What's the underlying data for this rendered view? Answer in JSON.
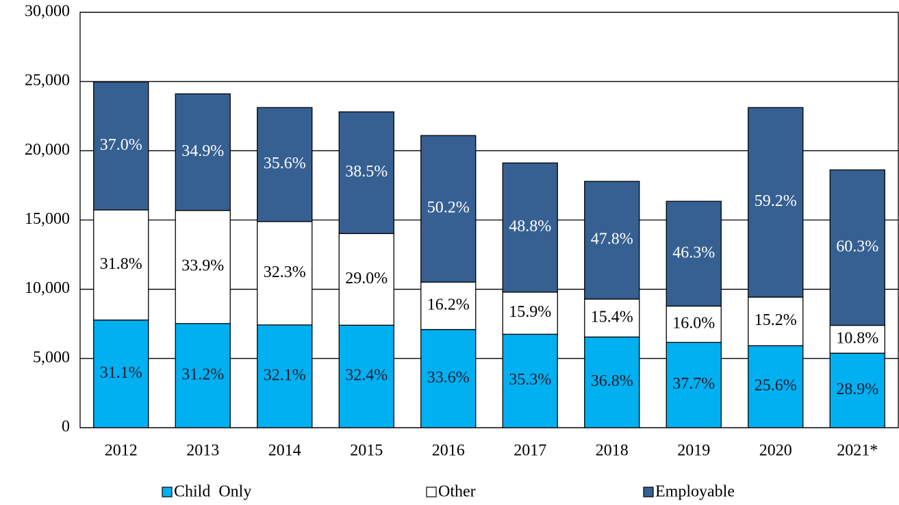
{
  "chart_data": {
    "type": "stacked_bar",
    "categories": [
      "2012",
      "2013",
      "2014",
      "2015",
      "2016",
      "2017",
      "2018",
      "2019",
      "2020",
      "2021*"
    ],
    "series": [
      {
        "name": "Child  Only",
        "color": "#00b0f0",
        "label_color": "#1a1a2e",
        "values": [
          7775,
          7520,
          7420,
          7400,
          7090,
          6750,
          6550,
          6160,
          5920,
          5380
        ],
        "share_labels": [
          "31.1%",
          "31.2%",
          "32.1%",
          "32.4%",
          "33.6%",
          "35.3%",
          "36.8%",
          "37.7%",
          "25.6%",
          "28.9%"
        ]
      },
      {
        "name": "Other",
        "color": "#ffffff",
        "label_color": "#000000",
        "values": [
          7950,
          8170,
          7470,
          6620,
          3420,
          3040,
          2740,
          2620,
          3510,
          2010
        ],
        "share_labels": [
          "31.8%",
          "33.9%",
          "32.3%",
          "29.0%",
          "16.2%",
          "15.9%",
          "15.4%",
          "16.0%",
          "15.2%",
          "10.8%"
        ]
      },
      {
        "name": "Employable",
        "color": "#366092",
        "label_color": "#ffffff",
        "values": [
          9250,
          8420,
          8230,
          8790,
          10590,
          9330,
          8500,
          7570,
          13690,
          11230
        ],
        "share_labels": [
          "37.0%",
          "34.9%",
          "35.6%",
          "38.5%",
          "50.2%",
          "48.8%",
          "47.8%",
          "46.3%",
          "59.2%",
          "60.3%"
        ]
      }
    ],
    "ylim": [
      0,
      30000
    ],
    "yticks": [
      0,
      {
        "value": 5000,
        "label": "5,000"
      },
      {
        "value": 10000,
        "label": "10,000"
      },
      {
        "value": 15000,
        "label": "15,000"
      },
      {
        "value": 20000,
        "label": "20,000"
      },
      {
        "value": 25000,
        "label": "25,000"
      },
      {
        "value": 30000,
        "label": "30,000"
      }
    ],
    "grid": true,
    "legend": "bottom"
  }
}
